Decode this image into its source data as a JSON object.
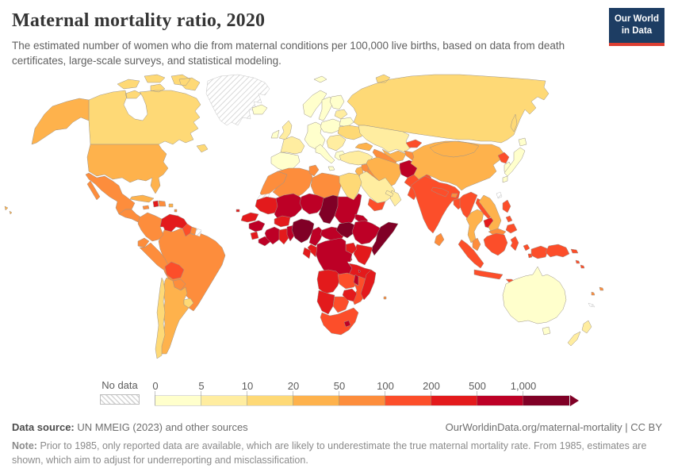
{
  "header": {
    "title": "Maternal mortality ratio, 2020",
    "subtitle": "The estimated number of women who die from maternal conditions per 100,000 live births, based on data from death certificates, large-scale surveys, and statistical modeling."
  },
  "logo": {
    "line1": "Our World",
    "line2": "in Data",
    "bg_color": "#1d3d63",
    "stripe_color": "#dc3e32"
  },
  "legend": {
    "no_data_label": "No data"
  },
  "footer": {
    "source_label": "Data source:",
    "source_text": "UN MMEIG (2023) and other sources",
    "link": "OurWorldinData.org/maternal-mortality | CC BY",
    "note_label": "Note:",
    "note_text": "Prior to 1985, only reported data are available, which are likely to underestimate the true maternal mortality rate. From 1985, estimates are shown, which aim to adjust for underreporting and misclassification."
  },
  "chart_data": {
    "type": "choropleth",
    "title": "Maternal mortality ratio, 2020",
    "year": 2020,
    "unit": "estimated maternal deaths per 100,000 live births",
    "projection": "world map",
    "legend_bins": [
      {
        "tick": "0",
        "range": "0–5",
        "color": "#FFFFCC"
      },
      {
        "tick": "5",
        "range": "5–10",
        "color": "#FFEDA0"
      },
      {
        "tick": "10",
        "range": "10–20",
        "color": "#FED976"
      },
      {
        "tick": "20",
        "range": "20–50",
        "color": "#FEB24C"
      },
      {
        "tick": "50",
        "range": "50–100",
        "color": "#FD8D3C"
      },
      {
        "tick": "100",
        "range": "100–200",
        "color": "#FC4E2A"
      },
      {
        "tick": "200",
        "range": "200–500",
        "color": "#E31A1C"
      },
      {
        "tick": "500",
        "range": "500–1,000",
        "color": "#BD0026"
      },
      {
        "tick": "1,000",
        "range": "1,000+",
        "color": "#800026"
      }
    ],
    "no_data_label": "No data",
    "regions": [
      {
        "id": "greenland",
        "name": "Greenland",
        "color": "hatch"
      },
      {
        "id": "canada",
        "name": "Canada",
        "color": "#FED976"
      },
      {
        "id": "alaska",
        "name": "United States (Alaska)",
        "color": "#FEB24C"
      },
      {
        "id": "usa",
        "name": "United States",
        "color": "#FEB24C"
      },
      {
        "id": "hawaii",
        "name": "United States (Hawaii)",
        "color": "#FEB24C"
      },
      {
        "id": "mexico",
        "name": "Mexico",
        "color": "#FD8D3C"
      },
      {
        "id": "central-america",
        "name": "Guatemala, Honduras & Nicaragua",
        "color": "#FD8D3C"
      },
      {
        "id": "panama-cr",
        "name": "Costa Rica & Panama",
        "color": "#FEB24C"
      },
      {
        "id": "cuba",
        "name": "Cuba",
        "color": "#FEB24C"
      },
      {
        "id": "jamaica",
        "name": "Jamaica",
        "color": "#FD8D3C"
      },
      {
        "id": "haiti",
        "name": "Haiti",
        "color": "#E31A1C"
      },
      {
        "id": "dominican-republic",
        "name": "Dominican Republic",
        "color": "#FD8D3C"
      },
      {
        "id": "puerto-rico",
        "name": "Puerto Rico",
        "color": "#FEB24C"
      },
      {
        "id": "lesser-antilles",
        "name": "Lesser Antilles",
        "color": "#FD8D3C"
      },
      {
        "id": "brazil",
        "name": "Brazil",
        "color": "#FD8D3C"
      },
      {
        "id": "colombia",
        "name": "Colombia",
        "color": "#FD8D3C"
      },
      {
        "id": "venezuela",
        "name": "Venezuela",
        "color": "#E31A1C"
      },
      {
        "id": "guyana",
        "name": "Guyana",
        "color": "#FC4E2A"
      },
      {
        "id": "suriname",
        "name": "Suriname",
        "color": "#FD8D3C"
      },
      {
        "id": "french-guiana",
        "name": "French Guiana",
        "color": "hatch"
      },
      {
        "id": "ecuador",
        "name": "Ecuador",
        "color": "#FD8D3C"
      },
      {
        "id": "peru",
        "name": "Peru",
        "color": "#FD8D3C"
      },
      {
        "id": "bolivia",
        "name": "Bolivia",
        "color": "#FC4E2A"
      },
      {
        "id": "paraguay",
        "name": "Paraguay",
        "color": "#FD8D3C"
      },
      {
        "id": "argentina",
        "name": "Argentina",
        "color": "#FEB24C"
      },
      {
        "id": "chile",
        "name": "Chile",
        "color": "#FED976"
      },
      {
        "id": "uruguay",
        "name": "Uruguay",
        "color": "#FED976"
      },
      {
        "id": "iceland",
        "name": "Iceland",
        "color": "#FFFFCC"
      },
      {
        "id": "svalbard",
        "name": "Svalbard",
        "color": "#FFFFCC"
      },
      {
        "id": "norway",
        "name": "Norway",
        "color": "#FFFFCC"
      },
      {
        "id": "sweden",
        "name": "Sweden",
        "color": "#FFFFCC"
      },
      {
        "id": "finland",
        "name": "Finland",
        "color": "#FFFFCC"
      },
      {
        "id": "denmark",
        "name": "Denmark",
        "color": "#FFFFCC"
      },
      {
        "id": "uk",
        "name": "United Kingdom",
        "color": "#FFEDA0"
      },
      {
        "id": "ireland",
        "name": "Ireland",
        "color": "#FFFFCC"
      },
      {
        "id": "france",
        "name": "France",
        "color": "#FFEDA0"
      },
      {
        "id": "iberia",
        "name": "Spain & Portugal",
        "color": "#FFFFCC"
      },
      {
        "id": "germany",
        "name": "Germany & Central Europe",
        "color": "#FFFFCC"
      },
      {
        "id": "italy",
        "name": "Italy",
        "color": "#FFFFCC"
      },
      {
        "id": "poland",
        "name": "Poland",
        "color": "#FFFFCC"
      },
      {
        "id": "baltics",
        "name": "Baltic states",
        "color": "#FFEDA0"
      },
      {
        "id": "belarus",
        "name": "Belarus",
        "color": "#FFFFCC"
      },
      {
        "id": "ukraine",
        "name": "Ukraine",
        "color": "#FED976"
      },
      {
        "id": "romania-balkans",
        "name": "Romania & Balkans",
        "color": "#FFEDA0"
      },
      {
        "id": "greece",
        "name": "Greece",
        "color": "#FFFFCC"
      },
      {
        "id": "russia",
        "name": "Russia",
        "color": "#FED976"
      },
      {
        "id": "kazakhstan",
        "name": "Kazakhstan",
        "color": "#FFEDA0"
      },
      {
        "id": "uzbekistan",
        "name": "Uzbekistan",
        "color": "#FEB24C"
      },
      {
        "id": "turkmenistan",
        "name": "Turkmenistan",
        "color": "#FD8D3C"
      },
      {
        "id": "kyrgyzstan",
        "name": "Kyrgyzstan",
        "color": "#FC4E2A"
      },
      {
        "id": "tajikistan",
        "name": "Tajikistan",
        "color": "#FD8D3C"
      },
      {
        "id": "caucasus",
        "name": "Georgia, Armenia & Azerbaijan",
        "color": "#FEB24C"
      },
      {
        "id": "turkey",
        "name": "Turkey",
        "color": "#FFEDA0"
      },
      {
        "id": "syria",
        "name": "Syria",
        "color": "#FD8D3C"
      },
      {
        "id": "iraq",
        "name": "Iraq",
        "color": "#FD8D3C"
      },
      {
        "id": "iran",
        "name": "Iran",
        "color": "#FEB24C"
      },
      {
        "id": "afghanistan",
        "name": "Afghanistan",
        "color": "#BD0026"
      },
      {
        "id": "pakistan",
        "name": "Pakistan",
        "color": "#FC4E2A"
      },
      {
        "id": "jordan-israel",
        "name": "Jordan & Israel",
        "color": "#FEB24C"
      },
      {
        "id": "saudi-arabia",
        "name": "Saudi Arabia",
        "color": "#FFEDA0"
      },
      {
        "id": "yemen",
        "name": "Yemen",
        "color": "#FC4E2A"
      },
      {
        "id": "oman",
        "name": "Oman",
        "color": "#FFEDA0"
      },
      {
        "id": "qatar-uae",
        "name": "Qatar & United Arab Emirates",
        "color": "#FFEDA0"
      },
      {
        "id": "morocco",
        "name": "Morocco",
        "color": "#FD8D3C"
      },
      {
        "id": "western-sahara",
        "name": "Western Sahara",
        "color": "hatch"
      },
      {
        "id": "algeria",
        "name": "Algeria",
        "color": "#FD8D3C"
      },
      {
        "id": "tunisia",
        "name": "Tunisia",
        "color": "#FD8D3C"
      },
      {
        "id": "libya",
        "name": "Libya",
        "color": "#FD8D3C"
      },
      {
        "id": "egypt",
        "name": "Egypt",
        "color": "#FED976"
      },
      {
        "id": "mauritania",
        "name": "Mauritania",
        "color": "#E31A1C"
      },
      {
        "id": "mali",
        "name": "Mali",
        "color": "#BD0026"
      },
      {
        "id": "niger",
        "name": "Niger",
        "color": "#BD0026"
      },
      {
        "id": "chad",
        "name": "Chad",
        "color": "#800026"
      },
      {
        "id": "sudan",
        "name": "Sudan",
        "color": "#BD0026"
      },
      {
        "id": "eritrea",
        "name": "Eritrea",
        "color": "#BD0026"
      },
      {
        "id": "djibouti",
        "name": "Djibouti",
        "color": "#BD0026"
      },
      {
        "id": "senegal",
        "name": "Senegal & Gambia",
        "color": "#E31A1C"
      },
      {
        "id": "guinea",
        "name": "Guinea",
        "color": "#BD0026"
      },
      {
        "id": "sierra-leone",
        "name": "Sierra Leone",
        "color": "#E31A1C"
      },
      {
        "id": "liberia",
        "name": "Liberia",
        "color": "#BD0026"
      },
      {
        "id": "ivory-coast",
        "name": "Cote d'Ivoire",
        "color": "#BD0026"
      },
      {
        "id": "ghana",
        "name": "Ghana",
        "color": "#E31A1C"
      },
      {
        "id": "burkina-faso",
        "name": "Burkina Faso",
        "color": "#E31A1C"
      },
      {
        "id": "togo-benin",
        "name": "Togo & Benin",
        "color": "#BD0026"
      },
      {
        "id": "nigeria",
        "name": "Nigeria",
        "color": "#800026"
      },
      {
        "id": "cameroon",
        "name": "Cameroon",
        "color": "#BD0026"
      },
      {
        "id": "car",
        "name": "Central African Republic",
        "color": "#BD0026"
      },
      {
        "id": "south-sudan",
        "name": "South Sudan",
        "color": "#800026"
      },
      {
        "id": "ethiopia",
        "name": "Ethiopia",
        "color": "#BD0026"
      },
      {
        "id": "somalia",
        "name": "Somalia",
        "color": "#800026"
      },
      {
        "id": "kenya",
        "name": "Kenya",
        "color": "#E31A1C"
      },
      {
        "id": "uganda",
        "name": "Uganda",
        "color": "#E31A1C"
      },
      {
        "id": "rwanda-burundi",
        "name": "Rwanda & Burundi",
        "color": "#E31A1C"
      },
      {
        "id": "drc",
        "name": "Democratic Republic of Congo",
        "color": "#BD0026"
      },
      {
        "id": "congo",
        "name": "Congo",
        "color": "#E31A1C"
      },
      {
        "id": "gabon",
        "name": "Gabon",
        "color": "#E31A1C"
      },
      {
        "id": "tanzania",
        "name": "Tanzania",
        "color": "#E31A1C"
      },
      {
        "id": "angola",
        "name": "Angola",
        "color": "#E31A1C"
      },
      {
        "id": "zambia",
        "name": "Zambia",
        "color": "#FC4E2A"
      },
      {
        "id": "malawi",
        "name": "Malawi",
        "color": "#BD0026"
      },
      {
        "id": "mozambique",
        "name": "Mozambique",
        "color": "#FC4E2A"
      },
      {
        "id": "zimbabwe",
        "name": "Zimbabwe",
        "color": "#E31A1C"
      },
      {
        "id": "namibia",
        "name": "Namibia",
        "color": "#E31A1C"
      },
      {
        "id": "botswana",
        "name": "Botswana",
        "color": "#FC4E2A"
      },
      {
        "id": "south-africa",
        "name": "South Africa",
        "color": "#FC4E2A"
      },
      {
        "id": "lesotho",
        "name": "Lesotho",
        "color": "#BD0026"
      },
      {
        "id": "madagascar",
        "name": "Madagascar",
        "color": "#E31A1C"
      },
      {
        "id": "comoros",
        "name": "Comoros",
        "color": "#BD0026"
      },
      {
        "id": "mauritius",
        "name": "Mauritius",
        "color": "#FD8D3C"
      },
      {
        "id": "cape-verde",
        "name": "Cape Verde",
        "color": "#E31A1C"
      },
      {
        "id": "china",
        "name": "China",
        "color": "#FEB24C"
      },
      {
        "id": "mongolia",
        "name": "Mongolia",
        "color": "#FEB24C"
      },
      {
        "id": "north-korea",
        "name": "North Korea",
        "color": "#FC4E2A"
      },
      {
        "id": "south-korea",
        "name": "South Korea",
        "color": "#FFFFCC"
      },
      {
        "id": "japan",
        "name": "Japan",
        "color": "#FFFFCC"
      },
      {
        "id": "taiwan",
        "name": "Taiwan",
        "color": "hatch"
      },
      {
        "id": "india",
        "name": "India",
        "color": "#FC4E2A"
      },
      {
        "id": "nepal",
        "name": "Nepal",
        "color": "#FC4E2A"
      },
      {
        "id": "bhutan",
        "name": "Bhutan",
        "color": "#FD8D3C"
      },
      {
        "id": "bangladesh",
        "name": "Bangladesh",
        "color": "#FC4E2A"
      },
      {
        "id": "sri-lanka",
        "name": "Sri Lanka",
        "color": "#FD8D3C"
      },
      {
        "id": "myanmar",
        "name": "Myanmar",
        "color": "#FC4E2A"
      },
      {
        "id": "thailand",
        "name": "Thailand",
        "color": "#FEB24C"
      },
      {
        "id": "laos",
        "name": "Laos",
        "color": "#FC4E2A"
      },
      {
        "id": "cambodia",
        "name": "Cambodia",
        "color": "#E31A1C"
      },
      {
        "id": "vietnam",
        "name": "Vietnam",
        "color": "#FEB24C"
      },
      {
        "id": "malaysia",
        "name": "Malaysia",
        "color": "#FD8D3C"
      },
      {
        "id": "indonesia",
        "name": "Indonesia",
        "color": "#FC4E2A"
      },
      {
        "id": "timor-leste",
        "name": "Timor-Leste",
        "color": "#E31A1C"
      },
      {
        "id": "philippines",
        "name": "Philippines",
        "color": "#FC4E2A"
      },
      {
        "id": "papua-new-guinea",
        "name": "Papua New Guinea",
        "color": "#FC4E2A"
      },
      {
        "id": "solomon-islands",
        "name": "Solomon Islands",
        "color": "#FC4E2A"
      },
      {
        "id": "australia",
        "name": "Australia",
        "color": "#FFFFCC"
      },
      {
        "id": "new-zealand",
        "name": "New Zealand",
        "color": "#FFEDA0"
      },
      {
        "id": "fiji",
        "name": "Fiji",
        "color": "#FD8D3C"
      },
      {
        "id": "vanuatu",
        "name": "Vanuatu",
        "color": "#FD8D3C"
      },
      {
        "id": "new-caledonia",
        "name": "New Caledonia",
        "color": "hatch"
      }
    ]
  }
}
